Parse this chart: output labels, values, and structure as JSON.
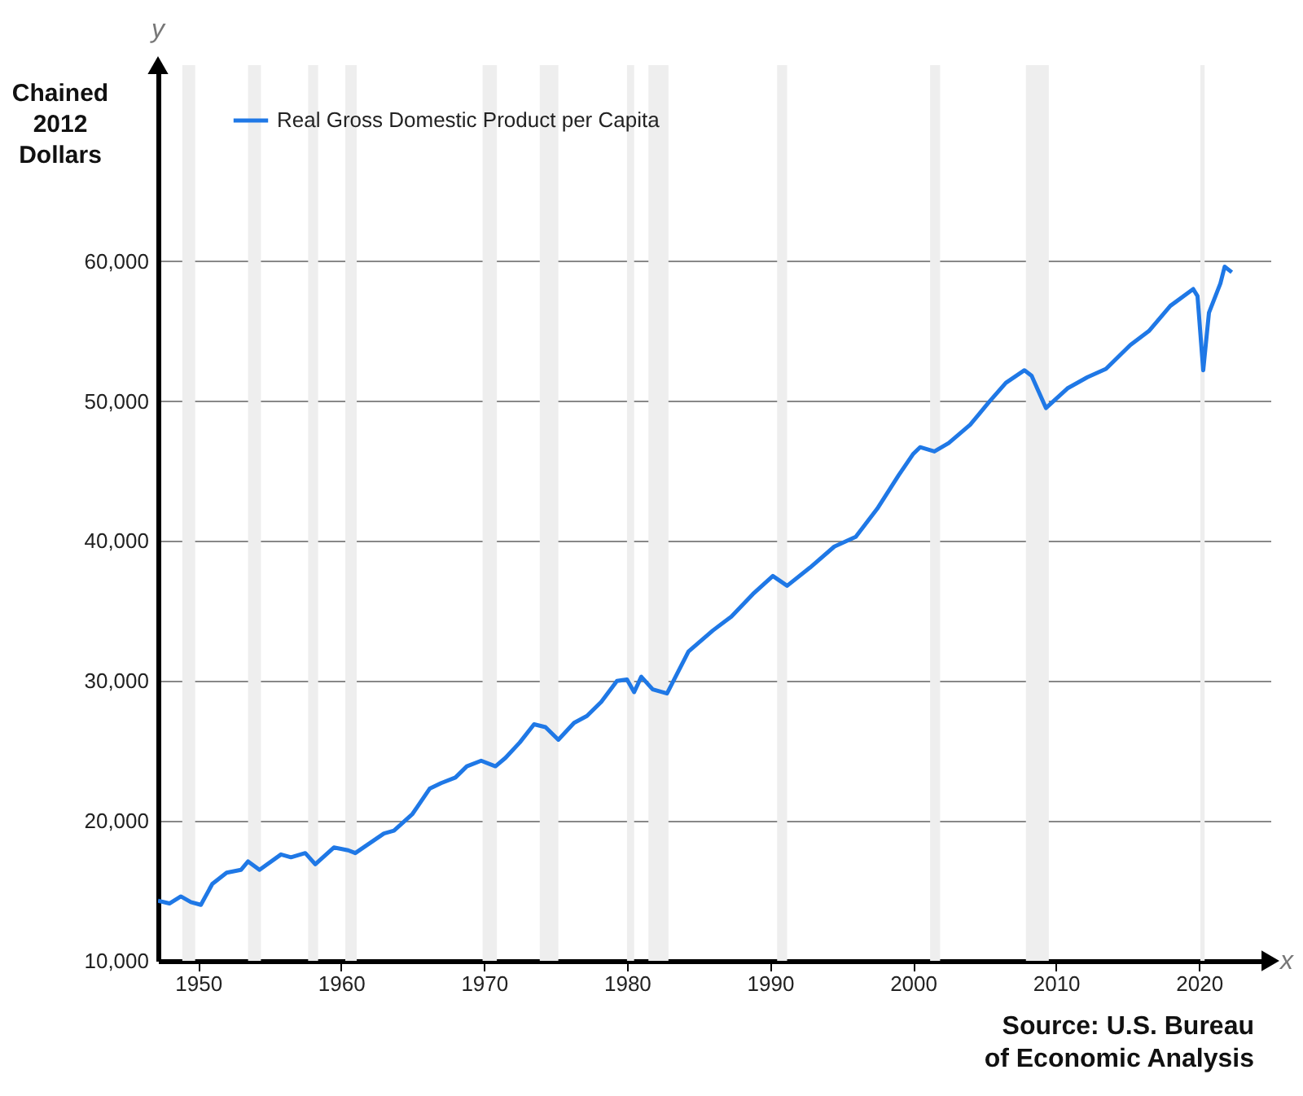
{
  "chart_data": {
    "type": "line",
    "ylabel": "Chained 2012 Dollars",
    "x": [
      1947.2,
      1948,
      1948.8,
      1949.5,
      1950.2,
      1951,
      1952,
      1953,
      1953.5,
      1954.3,
      1955.8,
      1956.5,
      1957.5,
      1958.2,
      1959.5,
      1960.5,
      1961,
      1962,
      1963,
      1963.7,
      1965,
      1966.2,
      1967,
      1968,
      1968.8,
      1969.8,
      1970.8,
      1971.5,
      1972.5,
      1973.5,
      1974.3,
      1975.2,
      1976.3,
      1977.2,
      1978.2,
      1979.3,
      1980,
      1980.5,
      1981,
      1981.8,
      1982.8,
      1984.3,
      1986,
      1987.3,
      1988.8,
      1990.2,
      1991.2,
      1992.8,
      1994.5,
      1996,
      1997.5,
      1999,
      2000,
      2000.5,
      2001.5,
      2002.5,
      2004,
      2005.3,
      2006.5,
      2007.8,
      2008.3,
      2009.3,
      2010.8,
      2012.2,
      2013.5,
      2015.2,
      2016.5,
      2018,
      2019.6,
      2019.9,
      2020.3,
      2020.7,
      2021.5,
      2021.8,
      2022.3
    ],
    "series": [
      {
        "name": "Real Gross Domestic Product per Capita",
        "color": "#1f78e6",
        "values": [
          14300,
          14100,
          14600,
          14200,
          14000,
          15500,
          16300,
          16500,
          17100,
          16500,
          17600,
          17400,
          17700,
          16900,
          18100,
          17900,
          17700,
          18400,
          19100,
          19300,
          20500,
          22300,
          22700,
          23100,
          23900,
          24300,
          23900,
          24500,
          25600,
          26900,
          26700,
          25800,
          27000,
          27500,
          28500,
          30000,
          30100,
          29200,
          30300,
          29400,
          29100,
          32100,
          33600,
          34600,
          36200,
          37500,
          36800,
          38100,
          39600,
          40300,
          42300,
          44700,
          46200,
          46700,
          46400,
          47000,
          48300,
          49900,
          51300,
          52200,
          51800,
          49500,
          50900,
          51700,
          52300,
          54000,
          55000,
          56800,
          58000,
          57500,
          52200,
          56300,
          58400,
          59600,
          59200
        ]
      }
    ],
    "xlim": [
      1947.2,
      2025
    ],
    "xticks": [
      1950,
      1960,
      1970,
      1980,
      1990,
      2000,
      2010,
      2020
    ],
    "ylim": [
      10000,
      74000
    ],
    "yticks": [
      {
        "value": 10000,
        "label": "10,000"
      },
      {
        "value": 20000,
        "label": "20,000"
      },
      {
        "value": 30000,
        "label": "30,000"
      },
      {
        "value": 40000,
        "label": "40,000"
      },
      {
        "value": 50000,
        "label": "50,000"
      },
      {
        "value": 60000,
        "label": "60,000"
      }
    ],
    "grid": "y",
    "legend": "top left",
    "bands": [
      {
        "axis": "x",
        "from": 1948.9,
        "to": 1949.8,
        "color": "#eeeeee"
      },
      {
        "axis": "x",
        "from": 1953.5,
        "to": 1954.4,
        "color": "#eeeeee"
      },
      {
        "axis": "x",
        "from": 1957.7,
        "to": 1958.4,
        "color": "#eeeeee"
      },
      {
        "axis": "x",
        "from": 1960.3,
        "to": 1961.1,
        "color": "#eeeeee"
      },
      {
        "axis": "x",
        "from": 1969.9,
        "to": 1970.9,
        "color": "#eeeeee"
      },
      {
        "axis": "x",
        "from": 1973.9,
        "to": 1975.2,
        "color": "#eeeeee"
      },
      {
        "axis": "x",
        "from": 1980.0,
        "to": 1980.5,
        "color": "#eeeeee"
      },
      {
        "axis": "x",
        "from": 1981.5,
        "to": 1982.9,
        "color": "#eeeeee"
      },
      {
        "axis": "x",
        "from": 1990.5,
        "to": 1991.2,
        "color": "#eeeeee"
      },
      {
        "axis": "x",
        "from": 2001.2,
        "to": 2001.9,
        "color": "#eeeeee"
      },
      {
        "axis": "x",
        "from": 2007.9,
        "to": 2009.5,
        "color": "#eeeeee"
      },
      {
        "axis": "x",
        "from": 2020.1,
        "to": 2020.4,
        "color": "#eeeeee"
      }
    ],
    "annotations": [
      "y",
      "x",
      "Source: U.S. Bureau of Economic Analysis"
    ]
  }
}
